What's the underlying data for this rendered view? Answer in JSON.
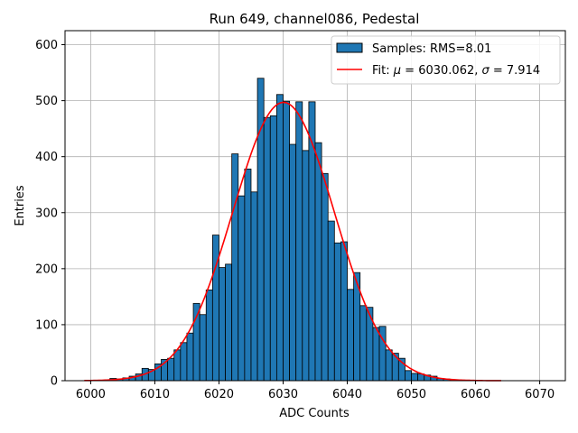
{
  "chart_data": {
    "type": "bar",
    "title": "Run 649, channel086, Pedestal",
    "xlabel": "ADC Counts",
    "ylabel": "Entries",
    "xlim": [
      5996,
      6074
    ],
    "ylim": [
      0,
      625
    ],
    "xticks": [
      6000,
      6010,
      6020,
      6030,
      6040,
      6050,
      6060,
      6070
    ],
    "yticks": [
      0,
      100,
      200,
      300,
      400,
      500,
      600
    ],
    "grid": true,
    "legend_position": "top-right",
    "colors": {
      "bar": "#1f77b4",
      "fit": "#ff0000",
      "grid": "#b0b0b0"
    },
    "bin_width": 1,
    "histogram": {
      "name": "Samples: RMS=8.01",
      "bins": [
        6000,
        6002,
        6003,
        6004,
        6005,
        6006,
        6007,
        6008,
        6009,
        6010,
        6011,
        6012,
        6013,
        6014,
        6015,
        6016,
        6017,
        6018,
        6019,
        6020,
        6021,
        6022,
        6023,
        6024,
        6025,
        6026,
        6027,
        6028,
        6029,
        6030,
        6031,
        6032,
        6033,
        6034,
        6035,
        6036,
        6037,
        6038,
        6039,
        6040,
        6041,
        6042,
        6043,
        6044,
        6045,
        6046,
        6047,
        6048,
        6049,
        6050,
        6051,
        6052,
        6053,
        6054,
        6055,
        6056,
        6057,
        6058,
        6059
      ],
      "counts": [
        1,
        1,
        4,
        3,
        5,
        8,
        12,
        22,
        20,
        30,
        38,
        40,
        55,
        68,
        85,
        138,
        118,
        162,
        260,
        202,
        208,
        405,
        330,
        378,
        337,
        540,
        470,
        473,
        511,
        499,
        422,
        498,
        411,
        498,
        425,
        370,
        285,
        246,
        248,
        163,
        193,
        134,
        131,
        95,
        97,
        55,
        49,
        40,
        18,
        13,
        12,
        10,
        8,
        4,
        3,
        1,
        1,
        1,
        1
      ]
    },
    "fit": {
      "name": "Fit: μ = 6030.062, σ = 7.914",
      "label_parts": {
        "prefix": "Fit: ",
        "mu": "μ",
        "mid": " = 6030.062, ",
        "sigma": "σ",
        "suffix": " = 7.914"
      },
      "mu": 6030.062,
      "sigma": 7.914,
      "amplitude": 497,
      "x_range": [
        5999,
        6064
      ]
    }
  }
}
